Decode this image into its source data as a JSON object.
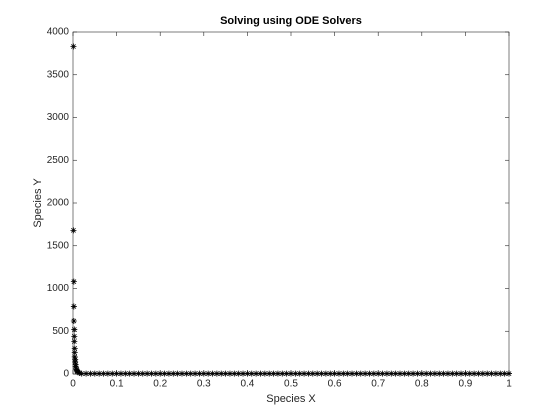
{
  "chart_data": {
    "type": "scatter",
    "title": "Solving using ODE Solvers",
    "xlabel": "Species X",
    "ylabel": "Species Y",
    "color": "#000000",
    "marker": "asterisk",
    "xlim": [
      0,
      1
    ],
    "ylim": [
      0,
      4000
    ],
    "xticks": [
      0,
      0.1,
      0.2,
      0.3,
      0.4,
      0.5,
      0.6,
      0.7,
      0.8,
      0.9,
      1
    ],
    "yticks": [
      0,
      500,
      1000,
      1500,
      2000,
      2500,
      3000,
      3500,
      4000
    ],
    "x": [
      0.001,
      0.001,
      0.002,
      0.002,
      0.002,
      0.003,
      0.003,
      0.003,
      0.004,
      0.004,
      0.004,
      0.005,
      0.005,
      0.006,
      0.006,
      0.007,
      0.008,
      0.009,
      0.01,
      0.012,
      0.015,
      0.02,
      0.03,
      0.04,
      0.05,
      0.06,
      0.07,
      0.08,
      0.09,
      0.1,
      0.11,
      0.12,
      0.13,
      0.14,
      0.15,
      0.16,
      0.17,
      0.18,
      0.19,
      0.2,
      0.21,
      0.22,
      0.23,
      0.24,
      0.25,
      0.26,
      0.27,
      0.28,
      0.29,
      0.3,
      0.31,
      0.32,
      0.33,
      0.34,
      0.35,
      0.36,
      0.37,
      0.38,
      0.39,
      0.4,
      0.41,
      0.42,
      0.43,
      0.44,
      0.45,
      0.46,
      0.47,
      0.48,
      0.49,
      0.5,
      0.51,
      0.52,
      0.53,
      0.54,
      0.55,
      0.56,
      0.57,
      0.58,
      0.59,
      0.6,
      0.61,
      0.62,
      0.63,
      0.64,
      0.65,
      0.66,
      0.67,
      0.68,
      0.69,
      0.7,
      0.71,
      0.72,
      0.73,
      0.74,
      0.75,
      0.76,
      0.77,
      0.78,
      0.79,
      0.8,
      0.81,
      0.82,
      0.83,
      0.84,
      0.85,
      0.86,
      0.87,
      0.88,
      0.89,
      0.9,
      0.91,
      0.92,
      0.93,
      0.94,
      0.95,
      0.96,
      0.97,
      0.98,
      0.99,
      1
    ],
    "values": [
      3830,
      1680,
      1080,
      790,
      620,
      520,
      440,
      380,
      300,
      250,
      200,
      170,
      140,
      110,
      90,
      70,
      55,
      40,
      30,
      20,
      12,
      5,
      5,
      5,
      5,
      5,
      5,
      5,
      5,
      5,
      5,
      5,
      5,
      5,
      5,
      5,
      5,
      5,
      5,
      5,
      5,
      5,
      5,
      5,
      5,
      5,
      5,
      5,
      5,
      5,
      5,
      5,
      5,
      5,
      5,
      5,
      5,
      5,
      5,
      5,
      5,
      5,
      5,
      5,
      5,
      5,
      5,
      5,
      5,
      5,
      5,
      5,
      5,
      5,
      5,
      5,
      5,
      5,
      5,
      5,
      5,
      5,
      5,
      5,
      5,
      5,
      5,
      5,
      5,
      5,
      5,
      5,
      5,
      5,
      5,
      5,
      5,
      5,
      5,
      5,
      5,
      5,
      5,
      5,
      5,
      5,
      5,
      5,
      5,
      5,
      5,
      5,
      5,
      5,
      5,
      5,
      5,
      5,
      5,
      5
    ]
  }
}
